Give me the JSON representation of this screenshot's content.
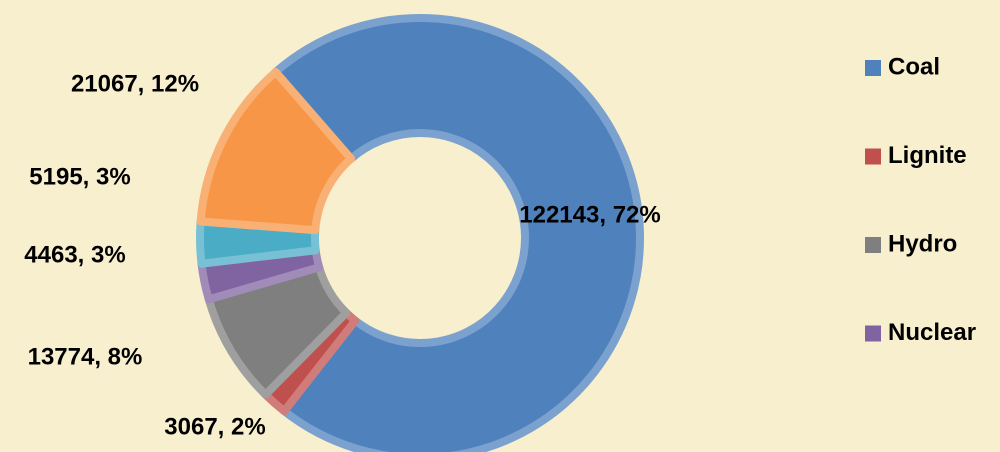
{
  "chart_data": {
    "type": "pie",
    "donut": true,
    "categories": [
      "Coal",
      "Lignite",
      "Hydro",
      "Nuclear",
      null,
      null
    ],
    "values": [
      122143,
      3067,
      13774,
      4463,
      5195,
      21067
    ],
    "value_labels": [
      "122143, 72%",
      "3067, 2%",
      "13774, 8%",
      "4463, 3%",
      "5195, 3%",
      "21067, 12%"
    ],
    "colors": [
      "#4f81bd",
      "#c0504d",
      "#7f7f7f",
      "#8064a2",
      "#4bacc6",
      "#f79646"
    ],
    "legend": "right"
  }
}
